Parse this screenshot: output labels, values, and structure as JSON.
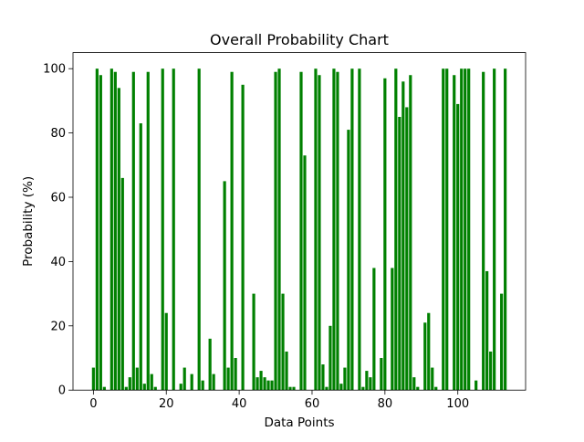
{
  "chart_data": {
    "type": "bar",
    "title": "Overall Probability Chart",
    "xlabel": "Data Points",
    "ylabel": "Probability (%)",
    "bar_color": "#008000",
    "xlim": [
      -5.6,
      118.6
    ],
    "ylim": [
      0,
      105
    ],
    "xticks": [
      0,
      20,
      40,
      60,
      80,
      100
    ],
    "yticks": [
      0,
      20,
      40,
      60,
      80,
      100
    ],
    "grid": false,
    "legend": "none",
    "x": [
      0,
      1,
      2,
      3,
      4,
      5,
      6,
      7,
      8,
      9,
      10,
      11,
      12,
      13,
      14,
      15,
      16,
      17,
      18,
      19,
      20,
      21,
      22,
      23,
      24,
      25,
      26,
      27,
      28,
      29,
      30,
      31,
      32,
      33,
      34,
      35,
      36,
      37,
      38,
      39,
      40,
      41,
      42,
      43,
      44,
      45,
      46,
      47,
      48,
      49,
      50,
      51,
      52,
      53,
      54,
      55,
      56,
      57,
      58,
      59,
      60,
      61,
      62,
      63,
      64,
      65,
      66,
      67,
      68,
      69,
      70,
      71,
      72,
      73,
      74,
      75,
      76,
      77,
      78,
      79,
      80,
      81,
      82,
      83,
      84,
      85,
      86,
      87,
      88,
      89,
      90,
      91,
      92,
      93,
      94,
      95,
      96,
      97,
      98,
      99,
      100,
      101,
      102,
      103,
      104,
      105,
      106,
      107,
      108,
      109,
      110,
      111,
      112,
      113
    ],
    "values": [
      7,
      100,
      98,
      1,
      0,
      100,
      99,
      94,
      66,
      1,
      4,
      99,
      7,
      83,
      2,
      99,
      5,
      1,
      0,
      100,
      24,
      0,
      100,
      0,
      2,
      7,
      0,
      5,
      0,
      100,
      3,
      0,
      16,
      5,
      0,
      0,
      65,
      7,
      99,
      10,
      0,
      95,
      0,
      0,
      30,
      4,
      6,
      4,
      3,
      3,
      99,
      100,
      30,
      12,
      1,
      1,
      0,
      99,
      73,
      0,
      0,
      100,
      98,
      8,
      1,
      20,
      100,
      99,
      2,
      7,
      81,
      100,
      0,
      100,
      1,
      6,
      4,
      38,
      0,
      10,
      97,
      0,
      38,
      100,
      85,
      96,
      88,
      98,
      4,
      1,
      0,
      21,
      24,
      7,
      1,
      0,
      100,
      100,
      0,
      98,
      89,
      100,
      100,
      100,
      0,
      3,
      0,
      99,
      37,
      12,
      100,
      0,
      30,
      100
    ]
  }
}
